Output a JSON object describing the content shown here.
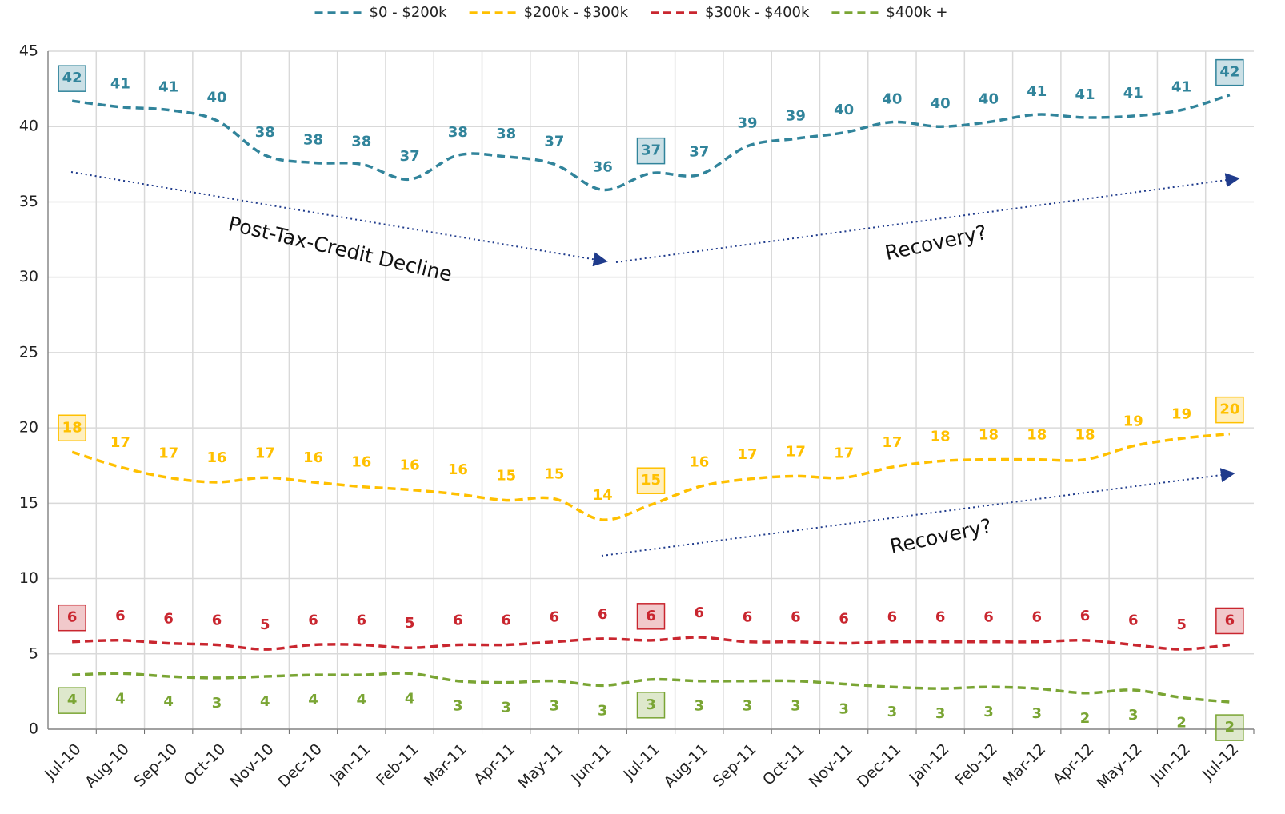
{
  "chart_data": {
    "type": "line",
    "categories": [
      "Jul-10",
      "Aug-10",
      "Sep-10",
      "Oct-10",
      "Nov-10",
      "Dec-10",
      "Jan-11",
      "Feb-11",
      "Mar-11",
      "Apr-11",
      "May-11",
      "Jun-11",
      "Jul-11",
      "Aug-11",
      "Sep-11",
      "Oct-11",
      "Nov-11",
      "Dec-11",
      "Jan-12",
      "Feb-12",
      "Mar-12",
      "Apr-12",
      "May-12",
      "Jun-12",
      "Jul-12"
    ],
    "series": [
      {
        "name": "$0 - $200k",
        "color": "#31849b",
        "values": [
          41.7,
          41.3,
          41.1,
          40.4,
          38.1,
          37.6,
          37.5,
          36.5,
          38.1,
          38.0,
          37.5,
          35.8,
          36.9,
          36.8,
          38.7,
          39.2,
          39.6,
          40.3,
          40.0,
          40.3,
          40.8,
          40.6,
          40.7,
          41.1,
          42.1
        ],
        "value_labels": [
          "42",
          "41",
          "41",
          "40",
          "38",
          "38",
          "38",
          "37",
          "38",
          "38",
          "37",
          "36",
          "37",
          "37",
          "39",
          "39",
          "40",
          "40",
          "40",
          "40",
          "41",
          "41",
          "41",
          "41",
          "42"
        ]
      },
      {
        "name": "$200k - $300k",
        "color": "#ffc000",
        "values": [
          18.4,
          17.4,
          16.7,
          16.4,
          16.7,
          16.4,
          16.1,
          15.9,
          15.6,
          15.2,
          15.3,
          13.9,
          14.9,
          16.1,
          16.6,
          16.8,
          16.7,
          17.4,
          17.8,
          17.9,
          17.9,
          17.9,
          18.8,
          19.3,
          19.6
        ],
        "value_labels": [
          "18",
          "17",
          "17",
          "16",
          "17",
          "16",
          "16",
          "16",
          "16",
          "15",
          "15",
          "14",
          "15",
          "16",
          "17",
          "17",
          "17",
          "17",
          "18",
          "18",
          "18",
          "18",
          "19",
          "19",
          "20"
        ]
      },
      {
        "name": "$300k - $400k",
        "color": "#c9262f",
        "values": [
          5.8,
          5.9,
          5.7,
          5.6,
          5.3,
          5.6,
          5.6,
          5.4,
          5.6,
          5.6,
          5.8,
          6.0,
          5.9,
          6.1,
          5.8,
          5.8,
          5.7,
          5.8,
          5.8,
          5.8,
          5.8,
          5.9,
          5.6,
          5.3,
          5.6
        ],
        "value_labels": [
          "6",
          "6",
          "6",
          "6",
          "5",
          "6",
          "6",
          "5",
          "6",
          "6",
          "6",
          "6",
          "6",
          "6",
          "6",
          "6",
          "6",
          "6",
          "6",
          "6",
          "6",
          "6",
          "6",
          "5",
          "6"
        ]
      },
      {
        "name": "$400k +",
        "color": "#7aa534",
        "values": [
          3.6,
          3.7,
          3.5,
          3.4,
          3.5,
          3.6,
          3.6,
          3.7,
          3.2,
          3.1,
          3.2,
          2.9,
          3.3,
          3.2,
          3.2,
          3.2,
          3.0,
          2.8,
          2.7,
          2.8,
          2.7,
          2.4,
          2.6,
          2.1,
          1.8
        ],
        "value_labels": [
          "4",
          "4",
          "4",
          "3",
          "4",
          "4",
          "4",
          "4",
          "3",
          "3",
          "3",
          "3",
          "3",
          "3",
          "3",
          "3",
          "3",
          "3",
          "3",
          "3",
          "3",
          "2",
          "3",
          "2",
          "2"
        ]
      }
    ],
    "boxed_label_indices": [
      0,
      12,
      24
    ],
    "annotations": [
      "Post-Tax-Credit Decline",
      "Recovery?",
      "Recovery?"
    ],
    "ylim": [
      0,
      45
    ],
    "yticks": [
      0,
      5,
      10,
      15,
      20,
      25,
      30,
      35,
      40,
      45
    ],
    "grid": true,
    "legend": "top"
  }
}
